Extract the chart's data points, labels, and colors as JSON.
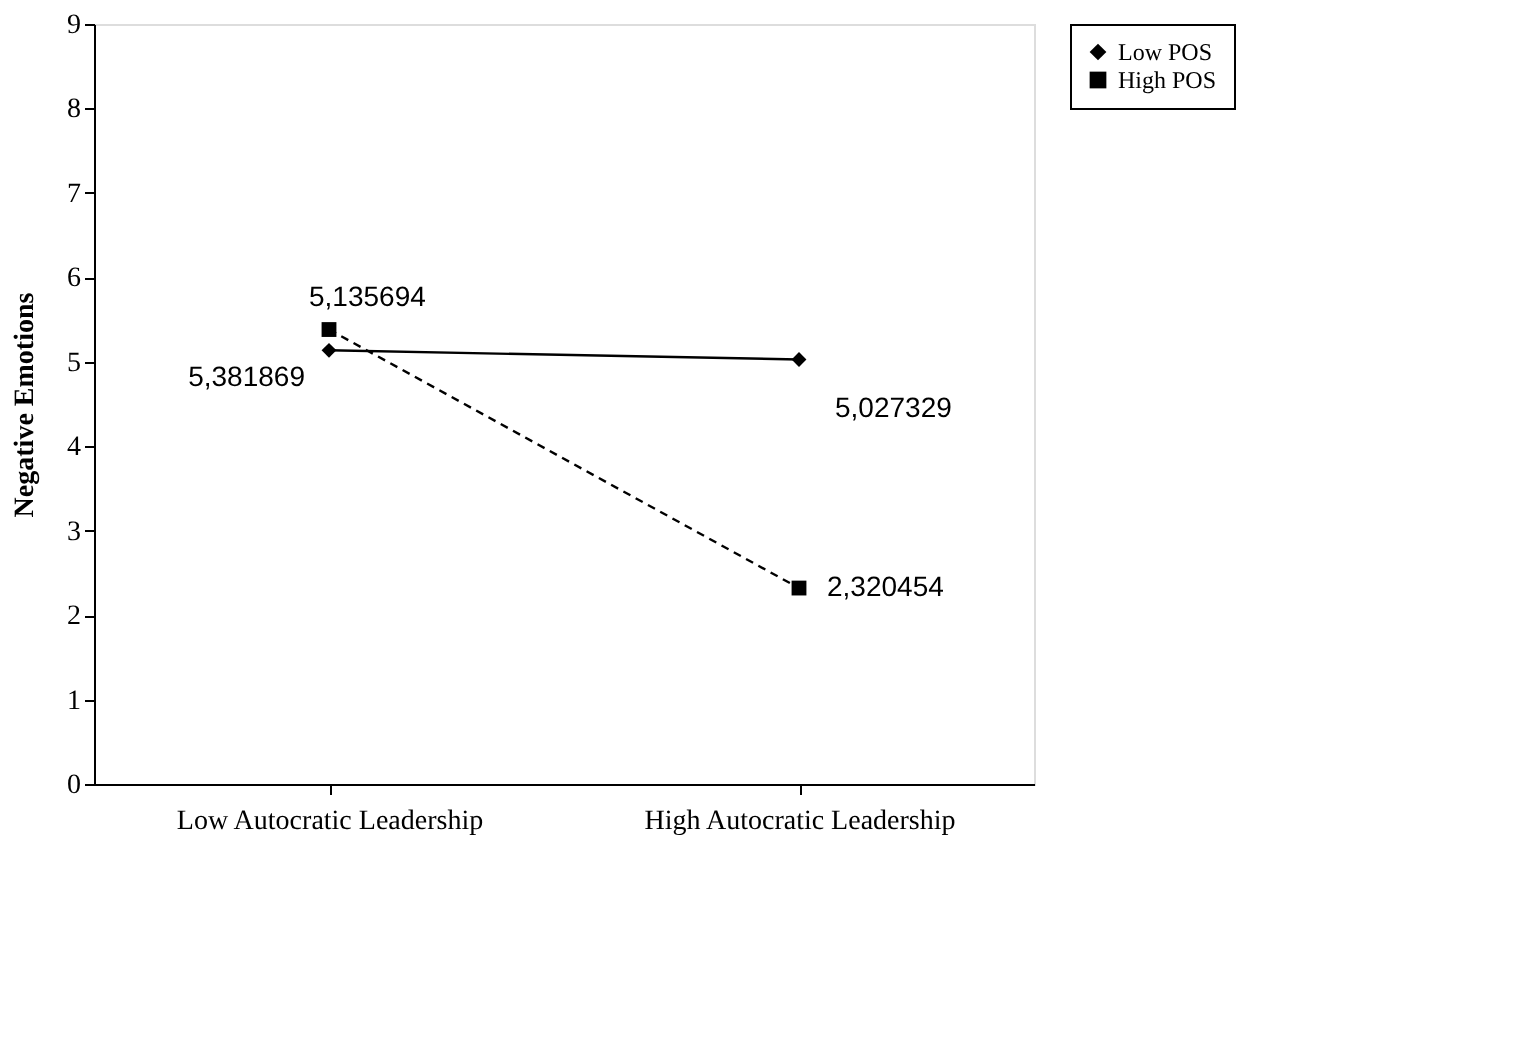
{
  "chart_data": {
    "type": "line",
    "ylabel": "Negative Emotions",
    "categories": [
      "Low Autocratic Leadership",
      "High Autocratic Leadership"
    ],
    "series": [
      {
        "name": "Low POS",
        "color": "#000000",
        "values": [
          5.135694,
          5.027329
        ],
        "marker": "diamond",
        "line_style": "solid",
        "value_labels": [
          "5,135694",
          "5,027329"
        ]
      },
      {
        "name": "High POS",
        "color": "#000000",
        "values": [
          5.381869,
          2.320454
        ],
        "marker": "square",
        "line_style": "dashed",
        "value_labels": [
          "5,381869",
          "2,320454"
        ]
      }
    ],
    "ylim": [
      0,
      9
    ],
    "yticks": [
      0,
      1,
      2,
      3,
      4,
      5,
      6,
      7,
      8,
      9
    ],
    "grid": false,
    "legend": "right"
  }
}
